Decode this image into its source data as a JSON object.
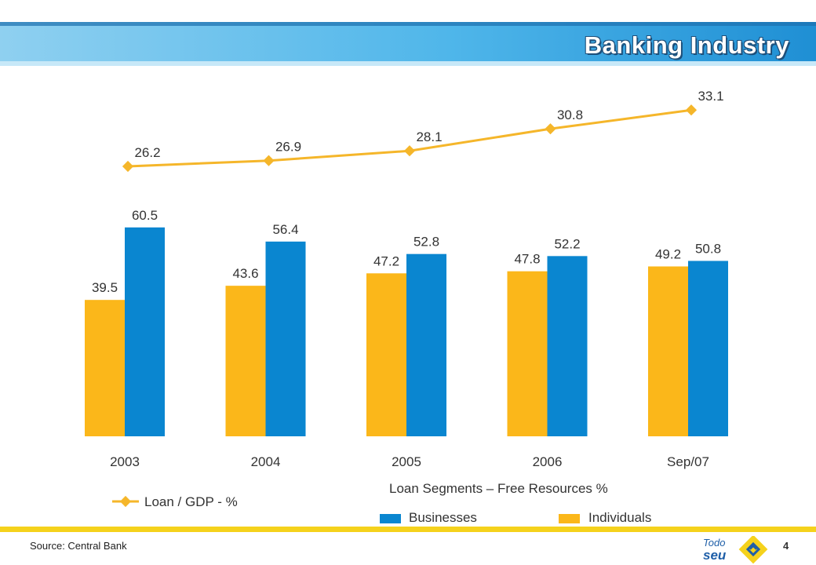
{
  "page": {
    "title": "Banking Industry",
    "source": "Source: Central Bank",
    "page_number": "4",
    "logo": {
      "top_word": "Todo",
      "bottom_word": "seu"
    }
  },
  "colors": {
    "individuals": "#FBB71A",
    "businesses": "#0A86D0",
    "line": "#F5B62A",
    "title_band_light": "#8FD0F0",
    "title_band_dark": "#1f8fd4",
    "footer_bar": "#F5D21C"
  },
  "legend": {
    "line_label": "Loan / GDP - %",
    "segments_title": "Loan Segments – Free Resources %",
    "businesses": "Businesses",
    "individuals": "Individuals"
  },
  "chart_data": {
    "type": "bar",
    "categories": [
      "2003",
      "2004",
      "2005",
      "2006",
      "Sep/07"
    ],
    "series": [
      {
        "name": "Individuals",
        "type": "bar",
        "values": [
          39.5,
          43.6,
          47.2,
          47.8,
          49.2
        ]
      },
      {
        "name": "Businesses",
        "type": "bar",
        "values": [
          60.5,
          56.4,
          52.8,
          52.2,
          50.8
        ]
      },
      {
        "name": "Loan / GDP - %",
        "type": "line",
        "values": [
          26.2,
          26.9,
          28.1,
          30.8,
          33.1
        ]
      }
    ],
    "title": "Banking Industry",
    "xlabel": "",
    "ylabel": "",
    "data_labels": true,
    "grid": false,
    "legend_position": "bottom"
  }
}
